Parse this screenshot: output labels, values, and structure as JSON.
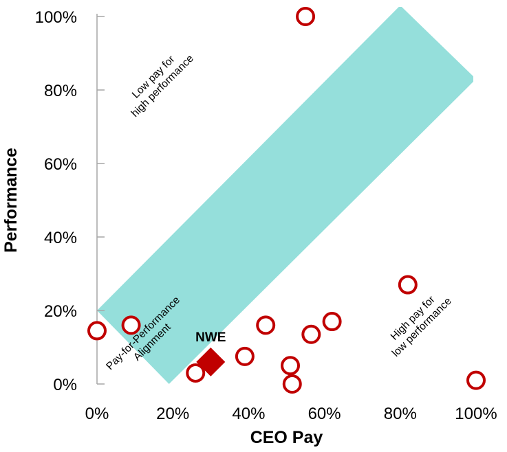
{
  "chart_data": {
    "type": "scatter",
    "xlabel": "CEO Pay",
    "ylabel": "Performance",
    "xlim": [
      0,
      100
    ],
    "ylim": [
      0,
      100
    ],
    "x_ticks": [
      "0%",
      "20%",
      "40%",
      "60%",
      "80%",
      "100%"
    ],
    "y_ticks": [
      "0%",
      "20%",
      "40%",
      "60%",
      "80%",
      "100%"
    ],
    "grid": false,
    "alignment_band": {
      "color": "#95dfdb",
      "lower_edge": [
        [
          19,
          0
        ],
        [
          100,
          83
        ]
      ],
      "upper_edge": [
        [
          0,
          20
        ],
        [
          80,
          103
        ]
      ]
    },
    "annotations": [
      {
        "name": "low-pay-high-performance",
        "lines": [
          "Low pay for",
          "high performance"
        ]
      },
      {
        "name": "high-pay-low-performance",
        "lines": [
          "High pay for",
          "low performance"
        ]
      },
      {
        "name": "pay-for-performance-alignment",
        "lines": [
          "Pay-for-Performance",
          "Alignment"
        ]
      }
    ],
    "peers": {
      "marker": "open-circle",
      "color": "#c00000",
      "points": [
        {
          "x": 0,
          "y": 14.5
        },
        {
          "x": 9,
          "y": 16
        },
        {
          "x": 26,
          "y": 3
        },
        {
          "x": 39,
          "y": 7.5
        },
        {
          "x": 44.5,
          "y": 16
        },
        {
          "x": 51,
          "y": 5
        },
        {
          "x": 51.5,
          "y": 0
        },
        {
          "x": 56.5,
          "y": 13.5
        },
        {
          "x": 62,
          "y": 17
        },
        {
          "x": 55,
          "y": 100
        },
        {
          "x": 82,
          "y": 27
        },
        {
          "x": 100,
          "y": 1
        }
      ]
    },
    "highlight": {
      "label": "NWE",
      "x": 30,
      "y": 6,
      "marker": "diamond",
      "color": "#c00000"
    }
  }
}
